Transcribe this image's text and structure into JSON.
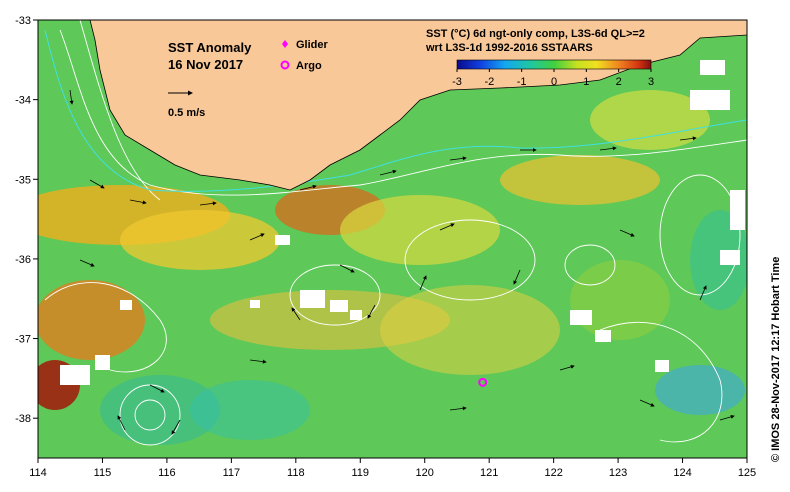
{
  "map": {
    "title": "SST Anomaly",
    "date": "16 Nov 2017",
    "scale_label": "0.5 m/s",
    "legend_glider": "Glider",
    "legend_argo": "Argo",
    "product_line1": "SST (°C) 6d ngt-only comp, L3S-6d QL>=2",
    "product_line2": "wrt L3S-1d 1992-2016 SSTAARS",
    "credit": "© IMOS 28-Nov-2017 12:17 Hobart Time",
    "land_color": "#f9c898",
    "glider_color": "#ff00ff",
    "argo_color": "#ff00ff"
  },
  "colorbar": {
    "ticks": [
      "-3",
      "-2",
      "-1",
      "0",
      "1",
      "2",
      "3"
    ],
    "range": [
      -3,
      3
    ]
  },
  "axes": {
    "x_ticks": [
      "114",
      "115",
      "116",
      "117",
      "118",
      "119",
      "120",
      "121",
      "122",
      "123",
      "124",
      "125"
    ],
    "y_ticks": [
      "-33",
      "-34",
      "-35",
      "-36",
      "-37",
      "-38"
    ]
  },
  "argo_floats": [
    {
      "lon": 120.9,
      "lat": -37.55
    }
  ]
}
